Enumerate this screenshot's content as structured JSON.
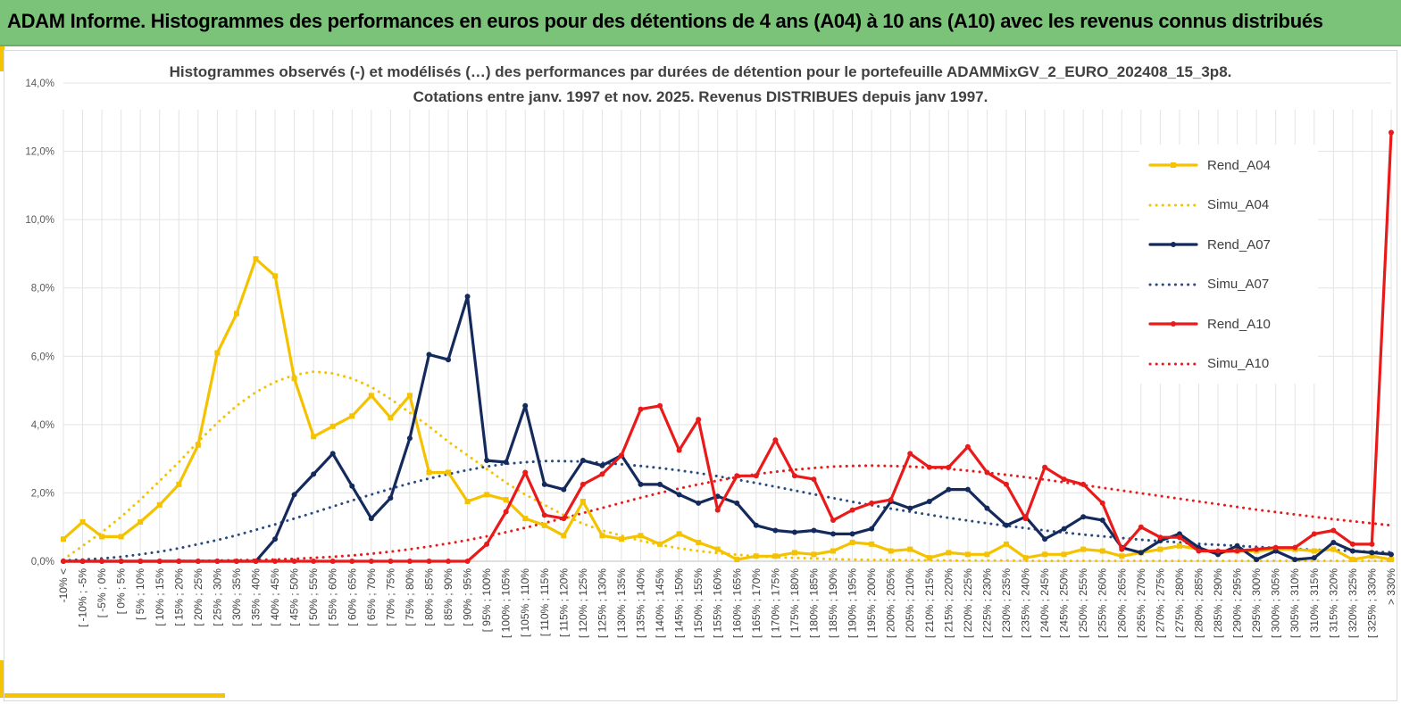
{
  "header": {
    "title": "ADAM Informe. Histogrammes des performances en euros pour des détentions de 4 ans (A04) à 10 ans (A10) avec les revenus connus distribués"
  },
  "chart_data": {
    "type": "line",
    "title_line1": "Histogrammes observés (-) et modélisés (…) des performances par durées de détention pour le portefeuille ADAMMixGV_2_EURO_202408_15_3p8.",
    "title_line2": "Cotations entre janv. 1997 et nov. 2025. Revenus DISTRIBUES depuis janv 1997.",
    "xlabel": "",
    "ylabel": "",
    "ylim": [
      0,
      14
    ],
    "yticks": [
      0,
      2,
      4,
      6,
      8,
      10,
      12,
      14
    ],
    "ytick_labels": [
      "0,0%",
      "2,0%",
      "4,0%",
      "6,0%",
      "8,0%",
      "10,0%",
      "12,0%",
      "14,0%"
    ],
    "grid": true,
    "legend_position": "right",
    "categories": [
      "-10% <",
      "[ -10% ; -5%",
      "[ -5% ; 0%",
      "[ 0% ; 5%",
      "[ 5% ; 10%",
      "[ 10% ; 15%",
      "[ 15% ; 20%",
      "[ 20% ; 25%",
      "[ 25% ; 30%",
      "[ 30% ; 35%",
      "[ 35% ; 40%",
      "[ 40% ; 45%",
      "[ 45% ; 50%",
      "[ 50% ; 55%",
      "[ 55% ; 60%",
      "[ 60% ; 65%",
      "[ 65% ; 70%",
      "[ 70% ; 75%",
      "[ 75% ; 80%",
      "[ 80% ; 85%",
      "[ 85% ; 90%",
      "[ 90% ; 95%",
      "[ 95% ; 100%",
      "[ 100% ; 105%",
      "[ 105% ; 110%",
      "[ 110% ; 115%",
      "[ 115% ; 120%",
      "[ 120% ; 125%",
      "[ 125% ; 130%",
      "[ 130% ; 135%",
      "[ 135% ; 140%",
      "[ 140% ; 145%",
      "[ 145% ; 150%",
      "[ 150% ; 155%",
      "[ 155% ; 160%",
      "[ 160% ; 165%",
      "[ 165% ; 170%",
      "[ 170% ; 175%",
      "[ 175% ; 180%",
      "[ 180% ; 185%",
      "[ 185% ; 190%",
      "[ 190% ; 195%",
      "[ 195% ; 200%",
      "[ 200% ; 205%",
      "[ 205% ; 210%",
      "[ 210% ; 215%",
      "[ 215% ; 220%",
      "[ 220% ; 225%",
      "[ 225% ; 230%",
      "[ 230% ; 235%",
      "[ 235% ; 240%",
      "[ 240% ; 245%",
      "[ 245% ; 250%",
      "[ 250% ; 255%",
      "[ 255% ; 260%",
      "[ 260% ; 265%",
      "[ 265% ; 270%",
      "[ 270% ; 275%",
      "[ 275% ; 280%",
      "[ 280% ; 285%",
      "[ 285% ; 290%",
      "[ 290% ; 295%",
      "[ 295% ; 300%",
      "[ 300% ; 305%",
      "[ 305% ; 310%",
      "[ 310% ; 315%",
      "[ 315% ; 320%",
      "[ 320% ; 325%",
      "[ 325% ; 330%",
      "> 330%"
    ],
    "series": [
      {
        "name": "Rend_A04",
        "color": "#f5c200",
        "style": "solid",
        "values": [
          0.65,
          1.15,
          0.72,
          0.72,
          1.15,
          1.65,
          2.25,
          3.4,
          6.1,
          7.25,
          8.85,
          8.35,
          5.35,
          3.65,
          3.95,
          4.25,
          4.85,
          4.2,
          4.85,
          2.6,
          2.6,
          1.75,
          1.95,
          1.8,
          1.25,
          1.05,
          0.75,
          1.75,
          0.75,
          0.65,
          0.75,
          0.5,
          0.8,
          0.55,
          0.35,
          0.05,
          0.15,
          0.15,
          0.25,
          0.2,
          0.3,
          0.55,
          0.5,
          0.3,
          0.35,
          0.1,
          0.25,
          0.2,
          0.2,
          0.5,
          0.1,
          0.2,
          0.2,
          0.35,
          0.3,
          0.15,
          0.25,
          0.35,
          0.45,
          0.35,
          0.25,
          0.3,
          0.3,
          0.35,
          0.35,
          0.3,
          0.35,
          0.05,
          0.15,
          0.05
        ]
      },
      {
        "name": "Simu_A04",
        "color": "#f5c200",
        "style": "dotted",
        "values": [
          0.05,
          0.45,
          0.85,
          1.3,
          1.8,
          2.35,
          2.9,
          3.5,
          4.05,
          4.55,
          4.95,
          5.25,
          5.45,
          5.55,
          5.5,
          5.35,
          5.1,
          4.75,
          4.35,
          3.95,
          3.5,
          3.1,
          2.7,
          2.3,
          1.95,
          1.65,
          1.35,
          1.1,
          0.9,
          0.75,
          0.6,
          0.48,
          0.38,
          0.3,
          0.24,
          0.19,
          0.15,
          0.12,
          0.1,
          0.08,
          0.06,
          0.05,
          0.04,
          0.04,
          0.03,
          0.03,
          0.02,
          0.02,
          0.02,
          0.02,
          0.01,
          0.01,
          0.01,
          0.01,
          0.01,
          0.01,
          0.01,
          0.01,
          0.01,
          0.01,
          0.01,
          0.01,
          0.01,
          0.01,
          0.01,
          0.01,
          0.01,
          0.01,
          0.01,
          0.01
        ]
      },
      {
        "name": "Rend_A07",
        "color": "#152a5c",
        "style": "solid",
        "values": [
          0,
          0,
          0,
          0,
          0,
          0,
          0,
          0,
          0,
          0,
          0,
          0.65,
          1.95,
          2.55,
          3.15,
          2.2,
          1.25,
          1.85,
          3.6,
          6.05,
          5.9,
          7.75,
          2.95,
          2.9,
          4.55,
          2.25,
          2.1,
          2.95,
          2.8,
          3.1,
          2.25,
          2.25,
          1.95,
          1.7,
          1.9,
          1.7,
          1.05,
          0.9,
          0.85,
          0.9,
          0.8,
          0.8,
          0.95,
          1.75,
          1.55,
          1.75,
          2.1,
          2.1,
          1.55,
          1.05,
          1.3,
          0.65,
          0.95,
          1.3,
          1.2,
          0.4,
          0.25,
          0.6,
          0.8,
          0.4,
          0.2,
          0.45,
          0.05,
          0.3,
          0.05,
          0.1,
          0.55,
          0.3,
          0.25,
          0.2
        ]
      },
      {
        "name": "Simu_A07",
        "color": "#2a4a7f",
        "style": "dotted",
        "values": [
          0.02,
          0.05,
          0.08,
          0.13,
          0.2,
          0.28,
          0.38,
          0.5,
          0.62,
          0.76,
          0.92,
          1.08,
          1.25,
          1.42,
          1.6,
          1.78,
          1.95,
          2.12,
          2.28,
          2.42,
          2.55,
          2.67,
          2.77,
          2.85,
          2.9,
          2.93,
          2.93,
          2.92,
          2.88,
          2.84,
          2.79,
          2.73,
          2.66,
          2.58,
          2.49,
          2.39,
          2.29,
          2.18,
          2.07,
          1.96,
          1.85,
          1.74,
          1.64,
          1.54,
          1.45,
          1.36,
          1.27,
          1.19,
          1.11,
          1.04,
          0.97,
          0.9,
          0.84,
          0.78,
          0.73,
          0.68,
          0.63,
          0.59,
          0.55,
          0.51,
          0.48,
          0.45,
          0.42,
          0.39,
          0.36,
          0.34,
          0.32,
          0.3,
          0.28,
          0.26
        ]
      },
      {
        "name": "Rend_A10",
        "color": "#e81a1a",
        "style": "solid",
        "values": [
          0,
          0,
          0,
          0,
          0,
          0,
          0,
          0,
          0,
          0,
          0,
          0,
          0,
          0,
          0,
          0,
          0,
          0,
          0,
          0,
          0,
          0,
          0.5,
          1.45,
          2.6,
          1.35,
          1.25,
          2.25,
          2.55,
          3.1,
          4.45,
          4.55,
          3.25,
          4.15,
          1.5,
          2.5,
          2.5,
          3.55,
          2.5,
          2.4,
          1.2,
          1.5,
          1.7,
          1.8,
          3.15,
          2.75,
          2.75,
          3.35,
          2.6,
          2.25,
          1.25,
          2.75,
          2.4,
          2.25,
          1.7,
          0.35,
          1.0,
          0.7,
          0.7,
          0.3,
          0.3,
          0.3,
          0.35,
          0.4,
          0.4,
          0.8,
          0.9,
          0.5,
          0.5,
          12.55
        ]
      },
      {
        "name": "Simu_A10",
        "color": "#e81a1a",
        "style": "dotted",
        "values": [
          0,
          0,
          0,
          0,
          0,
          0,
          0.01,
          0.01,
          0.02,
          0.03,
          0.04,
          0.05,
          0.07,
          0.1,
          0.13,
          0.17,
          0.22,
          0.28,
          0.35,
          0.43,
          0.52,
          0.62,
          0.73,
          0.85,
          0.98,
          1.12,
          1.26,
          1.41,
          1.56,
          1.71,
          1.86,
          2.0,
          2.13,
          2.25,
          2.36,
          2.46,
          2.55,
          2.62,
          2.68,
          2.73,
          2.77,
          2.79,
          2.8,
          2.79,
          2.77,
          2.74,
          2.7,
          2.65,
          2.59,
          2.53,
          2.46,
          2.39,
          2.31,
          2.23,
          2.15,
          2.07,
          1.99,
          1.91,
          1.83,
          1.75,
          1.67,
          1.59,
          1.51,
          1.44,
          1.37,
          1.3,
          1.23,
          1.17,
          1.11,
          1.05
        ]
      }
    ]
  }
}
